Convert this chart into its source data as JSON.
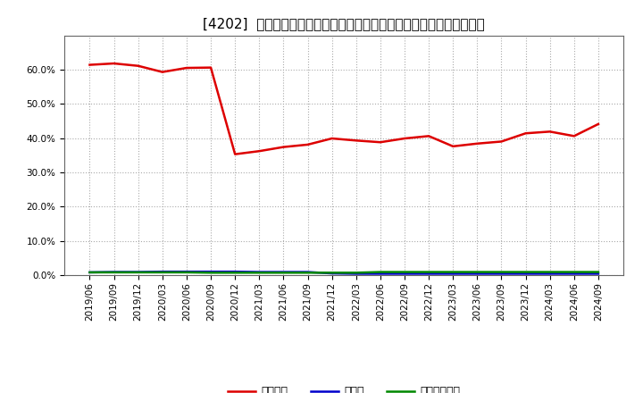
{
  "title": "[4202]  自己資本、のれん、繰延税金資産の総資産に対する比率の推移",
  "x_labels": [
    "2019/06",
    "2019/09",
    "2019/12",
    "2020/03",
    "2020/06",
    "2020/09",
    "2020/12",
    "2021/03",
    "2021/06",
    "2021/09",
    "2021/12",
    "2022/03",
    "2022/06",
    "2022/09",
    "2022/12",
    "2023/03",
    "2023/06",
    "2023/09",
    "2023/12",
    "2024/03",
    "2024/06",
    "2024/09"
  ],
  "jikoshihon": [
    0.614,
    0.618,
    0.611,
    0.593,
    0.605,
    0.606,
    0.353,
    0.362,
    0.374,
    0.381,
    0.399,
    0.393,
    0.388,
    0.399,
    0.406,
    0.376,
    0.384,
    0.39,
    0.414,
    0.419,
    0.406,
    0.441
  ],
  "noren": [
    0.008,
    0.009,
    0.009,
    0.01,
    0.01,
    0.01,
    0.01,
    0.009,
    0.009,
    0.009,
    0.005,
    0.004,
    0.004,
    0.004,
    0.004,
    0.004,
    0.004,
    0.004,
    0.004,
    0.004,
    0.004,
    0.004
  ],
  "kurinobe": [
    0.008,
    0.008,
    0.008,
    0.008,
    0.008,
    0.007,
    0.007,
    0.007,
    0.007,
    0.007,
    0.007,
    0.007,
    0.009,
    0.009,
    0.009,
    0.009,
    0.009,
    0.009,
    0.009,
    0.009,
    0.009,
    0.009
  ],
  "jikoshihon_color": "#dd0000",
  "noren_color": "#0000cc",
  "kurinobe_color": "#008800",
  "background_color": "#ffffff",
  "grid_color": "#aaaaaa",
  "plot_bg_color": "#ffffff",
  "legend_labels": [
    "自己資本",
    "のれん",
    "繰延税金資産"
  ],
  "ylim": [
    0.0,
    0.7
  ],
  "yticks": [
    0.0,
    0.1,
    0.2,
    0.3,
    0.4,
    0.5,
    0.6
  ],
  "line_width": 1.8,
  "title_fontsize": 11,
  "tick_fontsize": 7.5,
  "legend_fontsize": 9
}
